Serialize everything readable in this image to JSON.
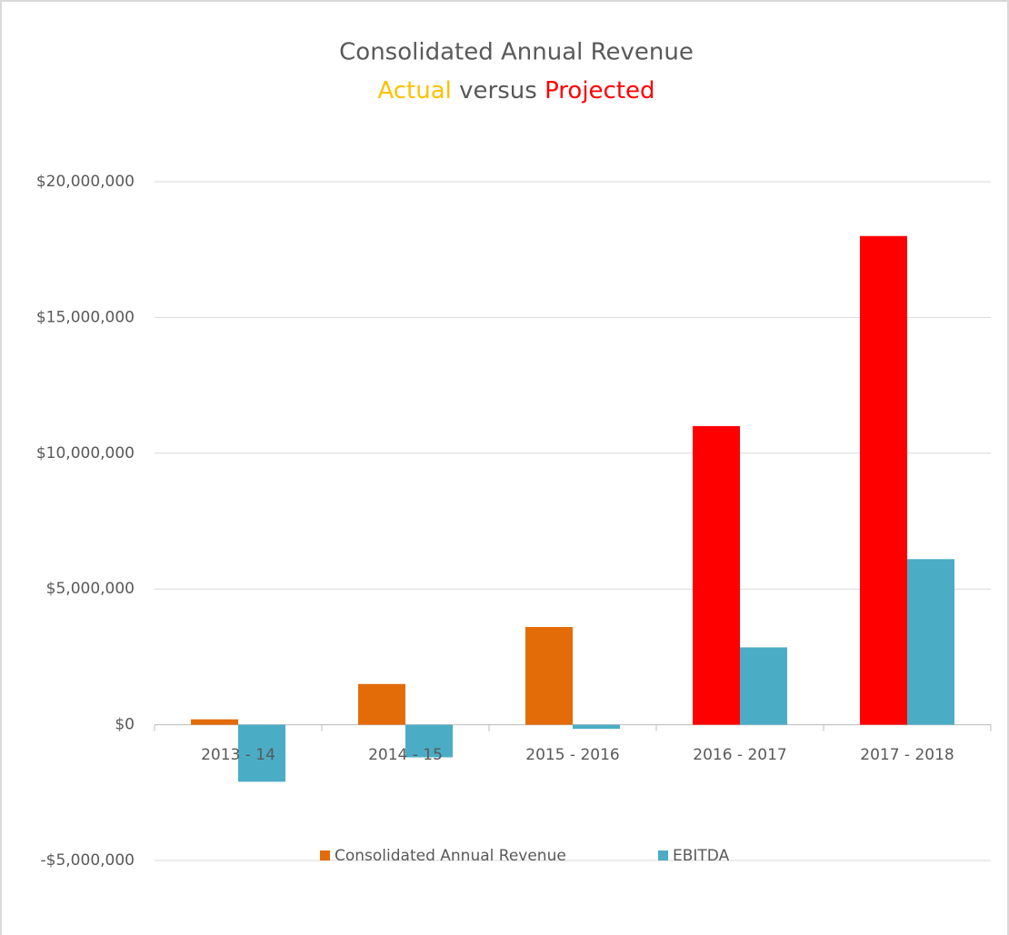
{
  "chart_data": {
    "type": "bar",
    "title": "Consolidated Annual Revenue",
    "subtitle": [
      {
        "text": "Actual",
        "color": "#ffc000"
      },
      {
        "text": "versus",
        "color": "#595959"
      },
      {
        "text": "Projected",
        "color": "#ff0000"
      }
    ],
    "categories": [
      "2013 - 14",
      "2014 - 15",
      "2015 - 2016",
      "2016 - 2017",
      "2017 - 2018"
    ],
    "series": [
      {
        "name": "Consolidated Annual Revenue",
        "color": "#e36c09",
        "colors": [
          "#e36c09",
          "#e36c09",
          "#e36c09",
          "#ff0000",
          "#ff0000"
        ],
        "values": [
          200000,
          1500000,
          3600000,
          11000000,
          18000000
        ]
      },
      {
        "name": "EBITDA",
        "color": "#4bacc6",
        "values": [
          -2100000,
          -1200000,
          -150000,
          2850000,
          6100000
        ]
      }
    ],
    "ylim": [
      -5000000,
      20000000
    ],
    "yticks": [
      {
        "value": -5000000,
        "label": "-$5,000,000"
      },
      {
        "value": 0,
        "label": "$0"
      },
      {
        "value": 5000000,
        "label": "$5,000,000"
      },
      {
        "value": 10000000,
        "label": "$10,000,000"
      },
      {
        "value": 15000000,
        "label": "$15,000,000"
      },
      {
        "value": 20000000,
        "label": "$20,000,000"
      }
    ],
    "grid": true,
    "legend": "bottom"
  }
}
